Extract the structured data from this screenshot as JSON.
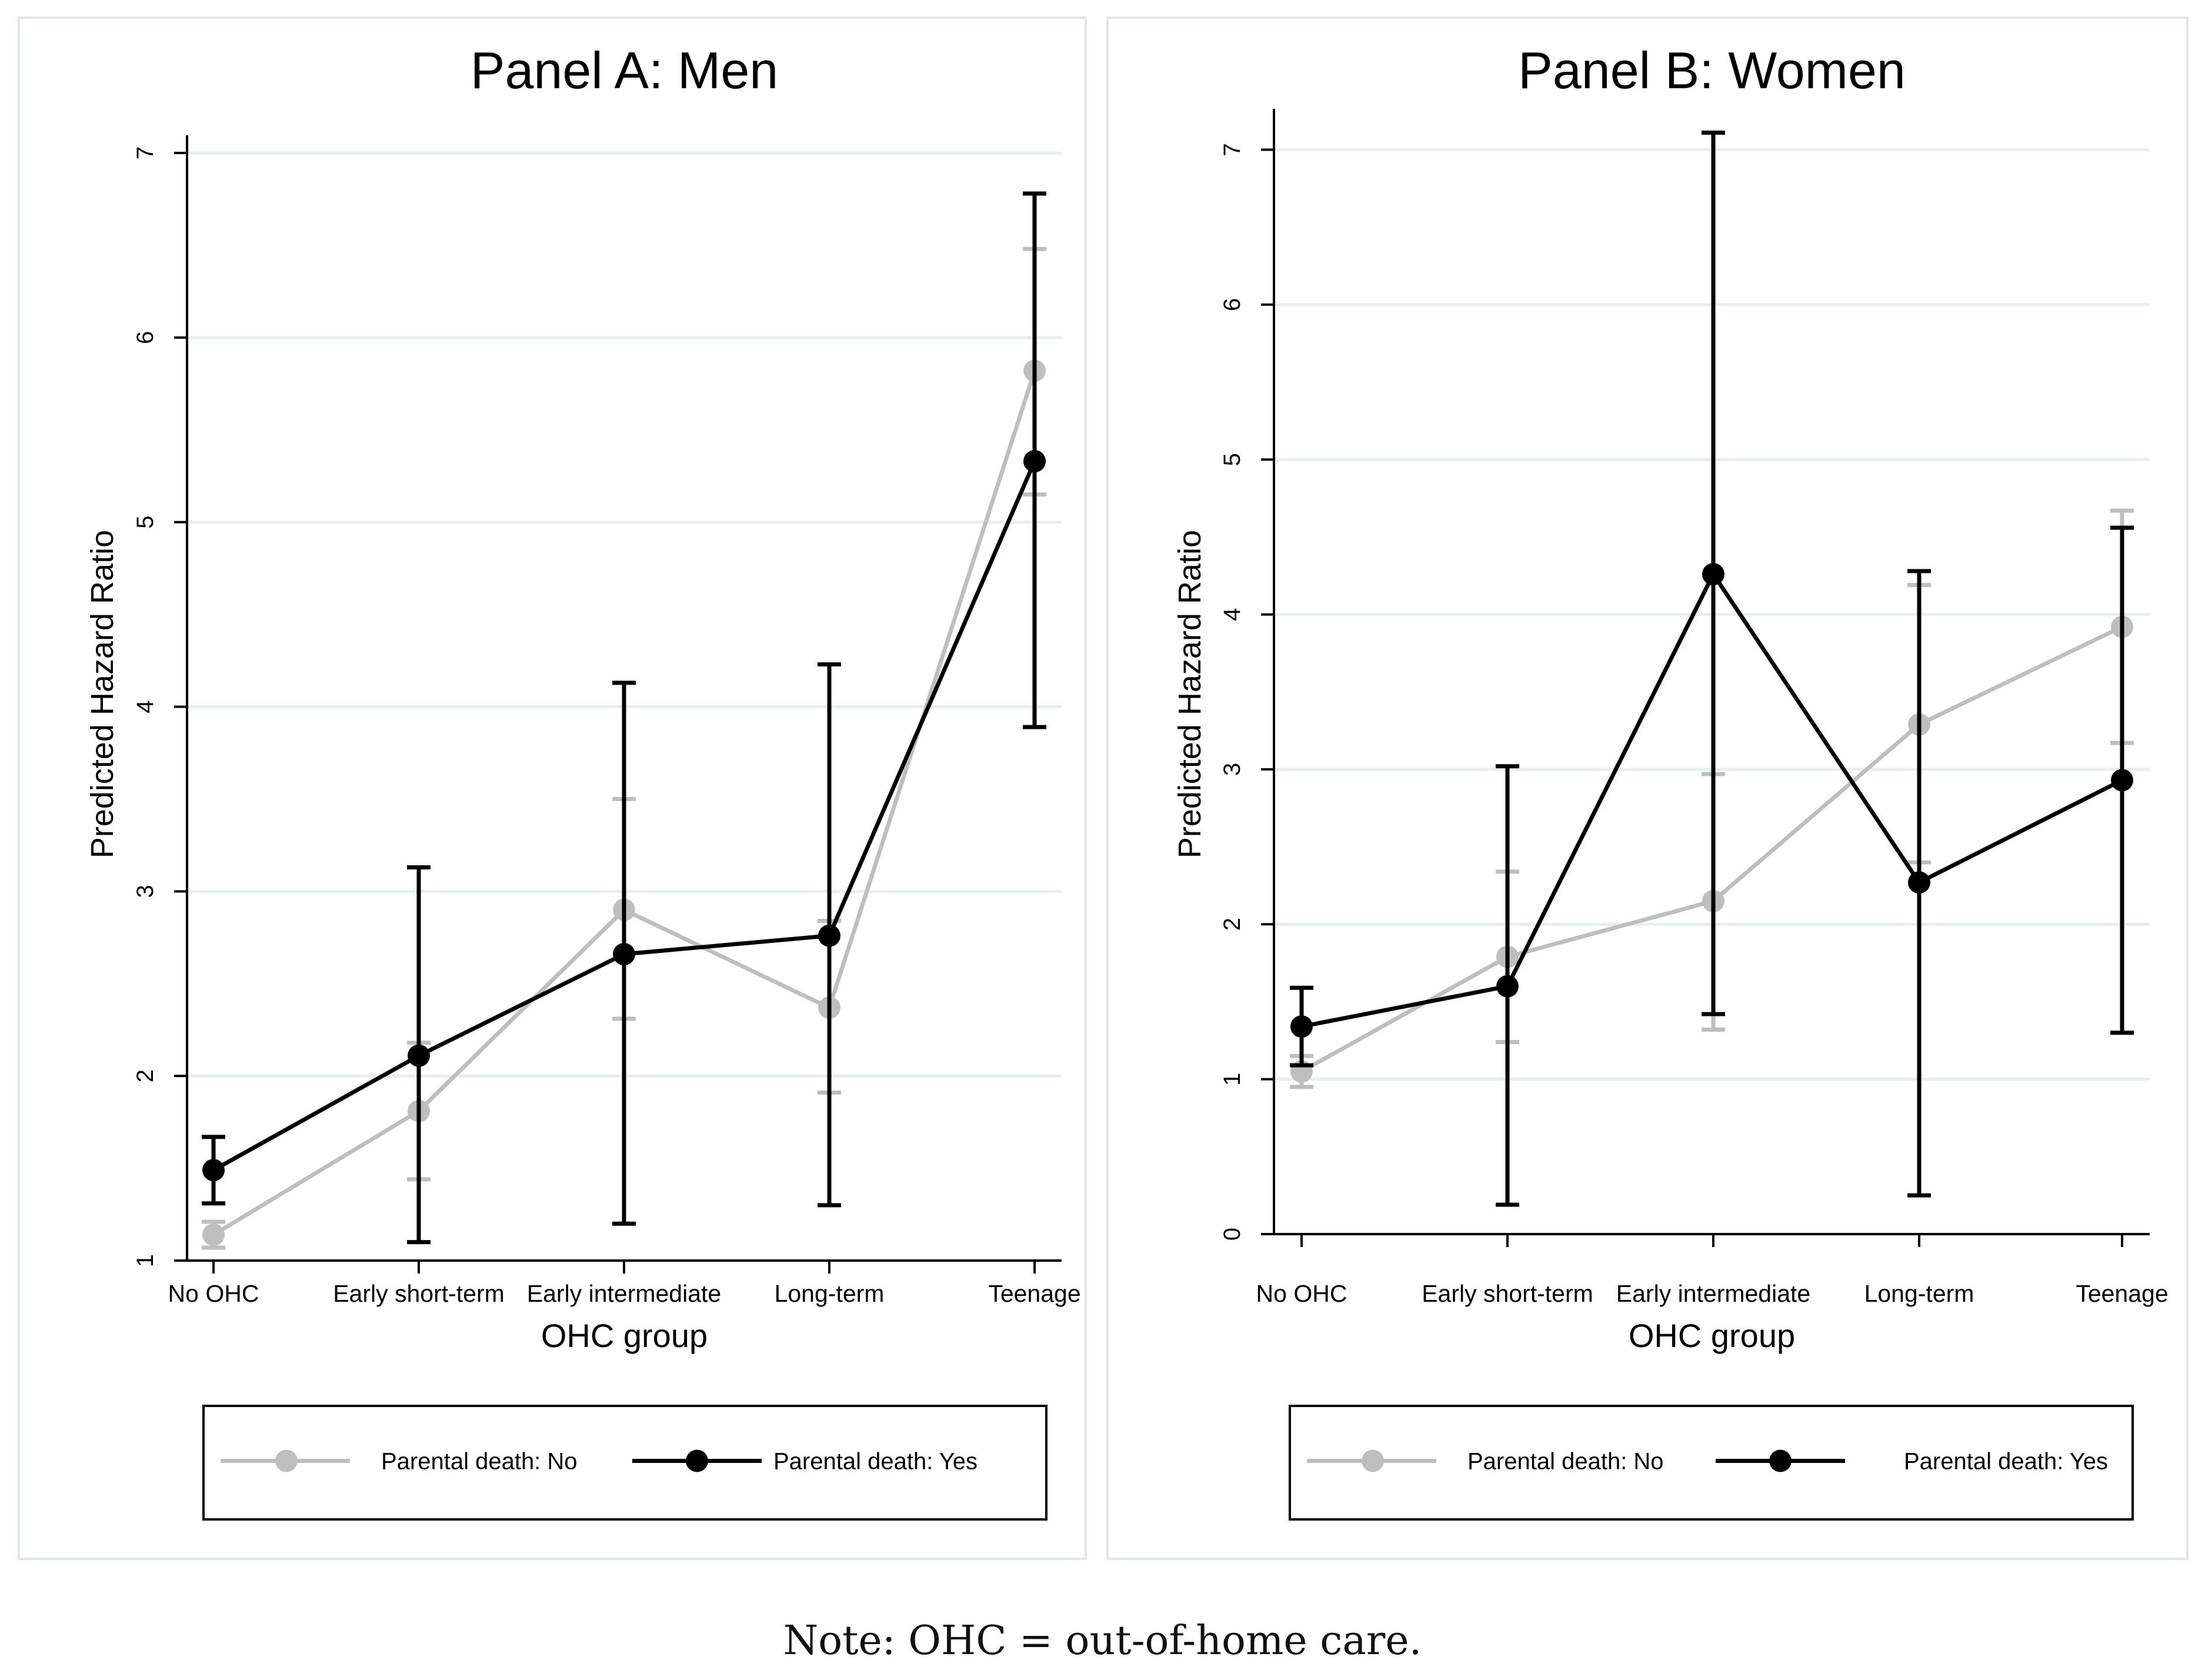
{
  "note": "Note: OHC = out-of-home care.",
  "colors": {
    "no": "#bebebe",
    "yes": "#000000",
    "grid": "#e6eeee",
    "axis": "#000000",
    "frame": "#dfe8e8"
  },
  "chart_data": [
    {
      "type": "line",
      "title": "Panel A: Men",
      "xlabel": "OHC group",
      "ylabel": "Predicted Hazard Ratio",
      "categories": [
        "No OHC",
        "Early short-term",
        "Early intermediate",
        "Long-term",
        "Teenage"
      ],
      "ylim": [
        1,
        7
      ],
      "yticks": [
        1,
        2,
        3,
        4,
        5,
        6,
        7
      ],
      "grid": true,
      "legend_position": "bottom",
      "series": [
        {
          "name": "Parental death: No",
          "color_key": "no",
          "values": [
            1.14,
            1.81,
            2.9,
            2.37,
            5.82
          ],
          "ci_low": [
            1.07,
            1.44,
            2.31,
            1.91,
            5.15
          ],
          "ci_high": [
            1.21,
            2.18,
            3.5,
            2.84,
            6.48
          ]
        },
        {
          "name": "Parental death: Yes",
          "color_key": "yes",
          "values": [
            1.49,
            2.11,
            2.66,
            2.76,
            5.33
          ],
          "ci_low": [
            1.31,
            1.1,
            1.2,
            1.3,
            3.89
          ],
          "ci_high": [
            1.67,
            3.13,
            4.13,
            4.23,
            6.78
          ]
        }
      ]
    },
    {
      "type": "line",
      "title": "Panel B: Women",
      "xlabel": "OHC group",
      "ylabel": "Predicted Hazard Ratio",
      "categories": [
        "No OHC",
        "Early short-term",
        "Early intermediate",
        "Long-term",
        "Teenage"
      ],
      "ylim": [
        0,
        7.15
      ],
      "yticks": [
        0,
        1,
        2,
        3,
        4,
        5,
        6,
        7
      ],
      "grid": true,
      "legend_position": "bottom",
      "series": [
        {
          "name": "Parental death: No",
          "color_key": "no",
          "values": [
            1.05,
            1.79,
            2.15,
            3.29,
            3.92
          ],
          "ci_low": [
            0.95,
            1.24,
            1.32,
            2.4,
            3.17
          ],
          "ci_high": [
            1.15,
            2.34,
            2.97,
            4.19,
            4.67
          ]
        },
        {
          "name": "Parental death: Yes",
          "color_key": "yes",
          "values": [
            1.34,
            1.6,
            4.26,
            2.27,
            2.93
          ],
          "ci_low": [
            1.09,
            0.19,
            1.42,
            0.25,
            1.3
          ],
          "ci_high": [
            1.59,
            3.02,
            7.11,
            4.28,
            4.56
          ]
        }
      ]
    }
  ]
}
